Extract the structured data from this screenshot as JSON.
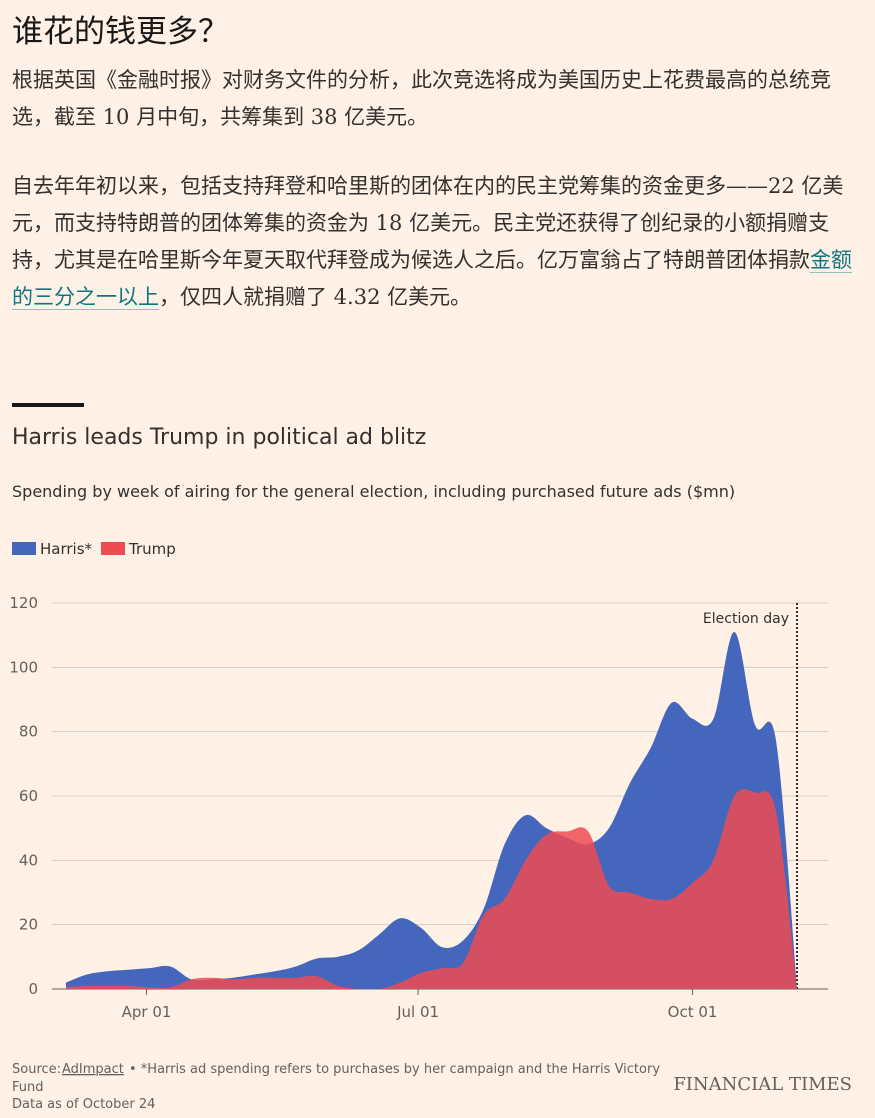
{
  "article": {
    "headline": "谁花的钱更多？",
    "paragraphs": [
      {
        "text": "根据英国《金融时报》对财务文件的分析，此次竞选将成为美国历史上花费最高的总统竞选，截至 10 月中旬，共筹集到 38 亿美元。"
      },
      {
        "before": "自去年年初以来，包括支持拜登和哈里斯的团体在内的民主党筹集的资金更多——22 亿美元，而支持特朗普的团体筹集的资金为 18 亿美元。民主党还获得了创纪录的小额捐赠支持，尤其是在哈里斯今年夏天取代拜登成为候选人之后。亿万富翁占了特朗普团体捐款",
        "link": "金额的三分之一以上",
        "after": "，仅四人就捐赠了 4.32 亿美元。"
      }
    ]
  },
  "chart_data": {
    "type": "area",
    "title": "Harris leads Trump in political ad blitz",
    "subtitle": "Spending by week of airing for the general election, including purchased future ads ($mn)",
    "x": [
      "Mar 05",
      "Mar 12",
      "Mar 19",
      "Mar 26",
      "Apr 02",
      "Apr 09",
      "Apr 16",
      "Apr 23",
      "Apr 30",
      "May 07",
      "May 14",
      "May 21",
      "May 28",
      "Jun 04",
      "Jun 11",
      "Jun 18",
      "Jun 25",
      "Jul 02",
      "Jul 09",
      "Jul 16",
      "Jul 23",
      "Jul 30",
      "Aug 06",
      "Aug 13",
      "Aug 20",
      "Aug 27",
      "Sep 03",
      "Sep 10",
      "Sep 17",
      "Sep 24",
      "Oct 01",
      "Oct 08",
      "Oct 15",
      "Oct 22",
      "Oct 29",
      "Nov 05"
    ],
    "series": [
      {
        "name": "Harris*",
        "color": "#4467bd",
        "values": [
          2,
          4.5,
          5.5,
          6,
          6.5,
          7,
          3,
          3,
          3.5,
          4.5,
          5.5,
          7,
          9.5,
          10,
          12,
          17,
          22,
          19,
          13,
          15,
          25,
          45,
          54,
          50,
          47,
          45,
          50,
          64,
          75,
          89,
          84,
          84,
          111,
          82,
          77,
          0
        ]
      },
      {
        "name": "Trump",
        "color": "#ee4b52",
        "values": [
          0.5,
          1,
          1,
          1,
          0.5,
          0.5,
          3,
          3.5,
          3,
          3.5,
          3.5,
          3.5,
          4,
          1,
          0,
          0,
          2,
          5,
          6.5,
          8,
          23,
          28,
          40,
          48,
          49,
          49,
          32,
          30,
          28,
          28,
          33,
          40,
          60,
          61,
          55,
          0
        ]
      }
    ],
    "ylim": [
      0,
      120
    ],
    "yticks": [
      0,
      20,
      40,
      60,
      80,
      100,
      120
    ],
    "xlim": [
      "Mar 05",
      "Nov 05"
    ],
    "xticks": [
      "Apr 01",
      "Jul 01",
      "Oct 01"
    ],
    "grid": true,
    "annotations": [
      {
        "x": "Nov 05",
        "label": "Election day"
      }
    ]
  },
  "footer": {
    "source_label": "Source:",
    "source_link": "AdImpact",
    "note": "• *Harris ad spending refers to purchases by her campaign and the Harris Victory Fund",
    "data_note": "Data as of October 24",
    "brand": "FINANCIAL TIMES"
  }
}
